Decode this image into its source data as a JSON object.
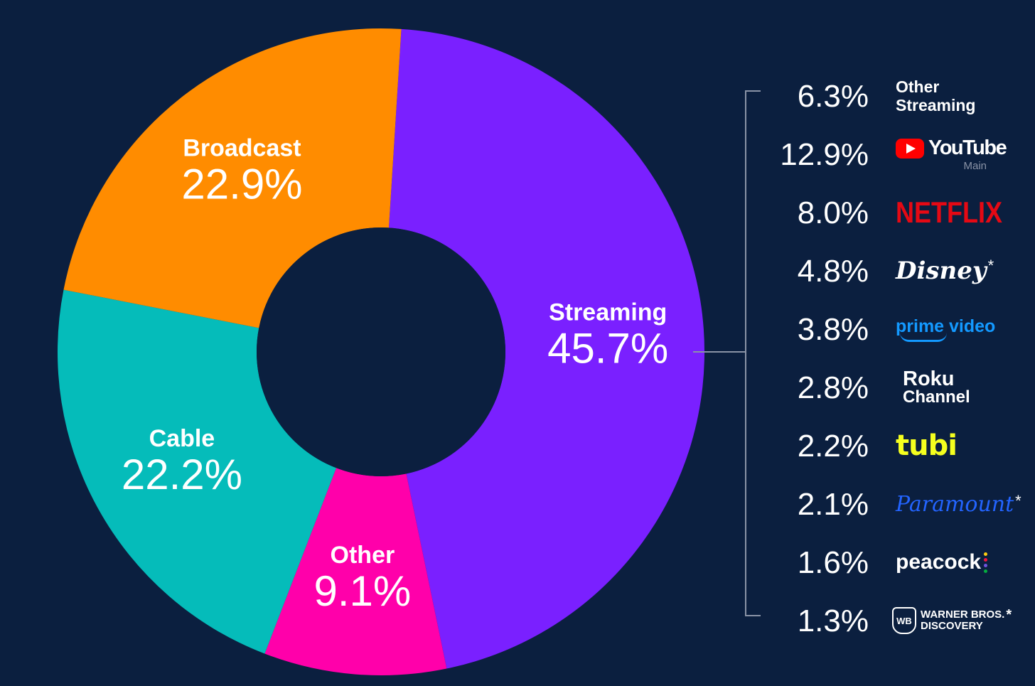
{
  "chart_data": {
    "type": "pie",
    "categories": [
      "Streaming",
      "Other",
      "Cable",
      "Broadcast"
    ],
    "values": [
      45.7,
      9.1,
      22.2,
      22.9
    ],
    "labels": [
      "45.7%",
      "9.1%",
      "22.2%",
      "22.9%"
    ],
    "colors": [
      "#7a20ff",
      "#ff00aa",
      "#05bcba",
      "#ff8c00"
    ],
    "donut": true,
    "legend": "none",
    "breakdown_of": "Streaming",
    "breakdown": [
      {
        "value": 6.3,
        "label": "6.3%",
        "brand": "Other Streaming",
        "icon": "other-streaming-text"
      },
      {
        "value": 12.9,
        "label": "12.9%",
        "brand": "YouTube",
        "sub": "Main",
        "icon": "youtube-logo"
      },
      {
        "value": 8.0,
        "label": "8.0%",
        "brand": "NETFLIX",
        "icon": "netflix-logo"
      },
      {
        "value": 4.8,
        "label": "4.8%",
        "brand": "Disney",
        "asterisk": "*",
        "icon": "disney-logo"
      },
      {
        "value": 3.8,
        "label": "3.8%",
        "brand": "prime video",
        "icon": "prime-video-logo"
      },
      {
        "value": 2.8,
        "label": "2.8%",
        "brand": "Roku",
        "sub": "Channel",
        "icon": "roku-channel-logo"
      },
      {
        "value": 2.2,
        "label": "2.2%",
        "brand": "tubi",
        "icon": "tubi-logo"
      },
      {
        "value": 2.1,
        "label": "2.1%",
        "brand": "Paramount",
        "asterisk": "*",
        "icon": "paramount-logo"
      },
      {
        "value": 1.6,
        "label": "1.6%",
        "brand": "peacock",
        "icon": "peacock-logo"
      },
      {
        "value": 1.3,
        "label": "1.3%",
        "brand": "WARNER BROS.",
        "sub": "DISCOVERY",
        "asterisk": "*",
        "icon": "warner-bros-discovery-logo"
      }
    ]
  },
  "colors": {
    "background": "#0b1f3f",
    "text": "#ffffff",
    "bracket": "#8a93a6"
  }
}
